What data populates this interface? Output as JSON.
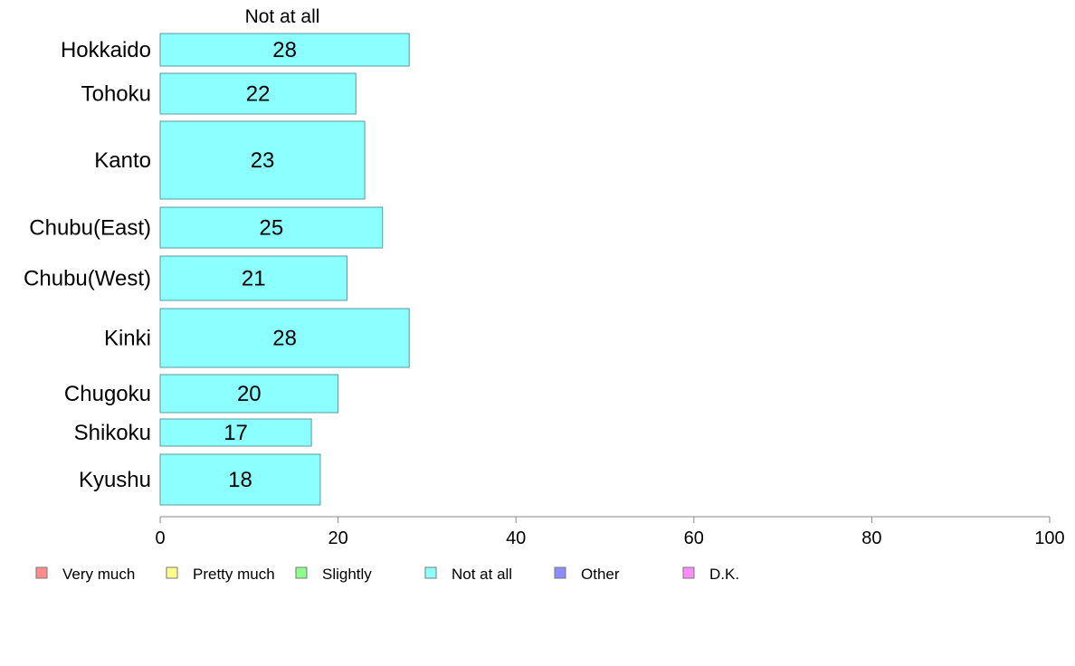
{
  "chart_data": {
    "type": "bar",
    "orientation": "horizontal",
    "panel_title": "Not at all",
    "categories": [
      "Hokkaido",
      "Tohoku",
      "Kanto",
      "Chubu(East)",
      "Chubu(West)",
      "Kinki",
      "Chugoku",
      "Shikoku",
      "Kyushu"
    ],
    "series": [
      {
        "name": "Not at all",
        "values": [
          28,
          22,
          23,
          25,
          21,
          28,
          20,
          17,
          18
        ]
      }
    ],
    "data_labels": [
      "28",
      "22",
      "23",
      "25",
      "21",
      "28",
      "20",
      "17",
      "18"
    ],
    "xlim": [
      0,
      100
    ],
    "x_ticks": [
      0,
      20,
      40,
      60,
      80,
      100
    ],
    "x_tick_labels": [
      "0",
      "20",
      "40",
      "60",
      "80",
      "100"
    ],
    "grid": false,
    "legend_position": "bottom",
    "legend": [
      {
        "label": "Very much",
        "color": "#ff8c8c"
      },
      {
        "label": "Pretty much",
        "color": "#ffff8c"
      },
      {
        "label": "Slightly",
        "color": "#8cff8c"
      },
      {
        "label": "Not at all",
        "color": "#8cffff"
      },
      {
        "label": "Other",
        "color": "#8c8cff"
      },
      {
        "label": "D.K.",
        "color": "#ff8cff"
      }
    ],
    "bar_color": "#8cffff"
  }
}
